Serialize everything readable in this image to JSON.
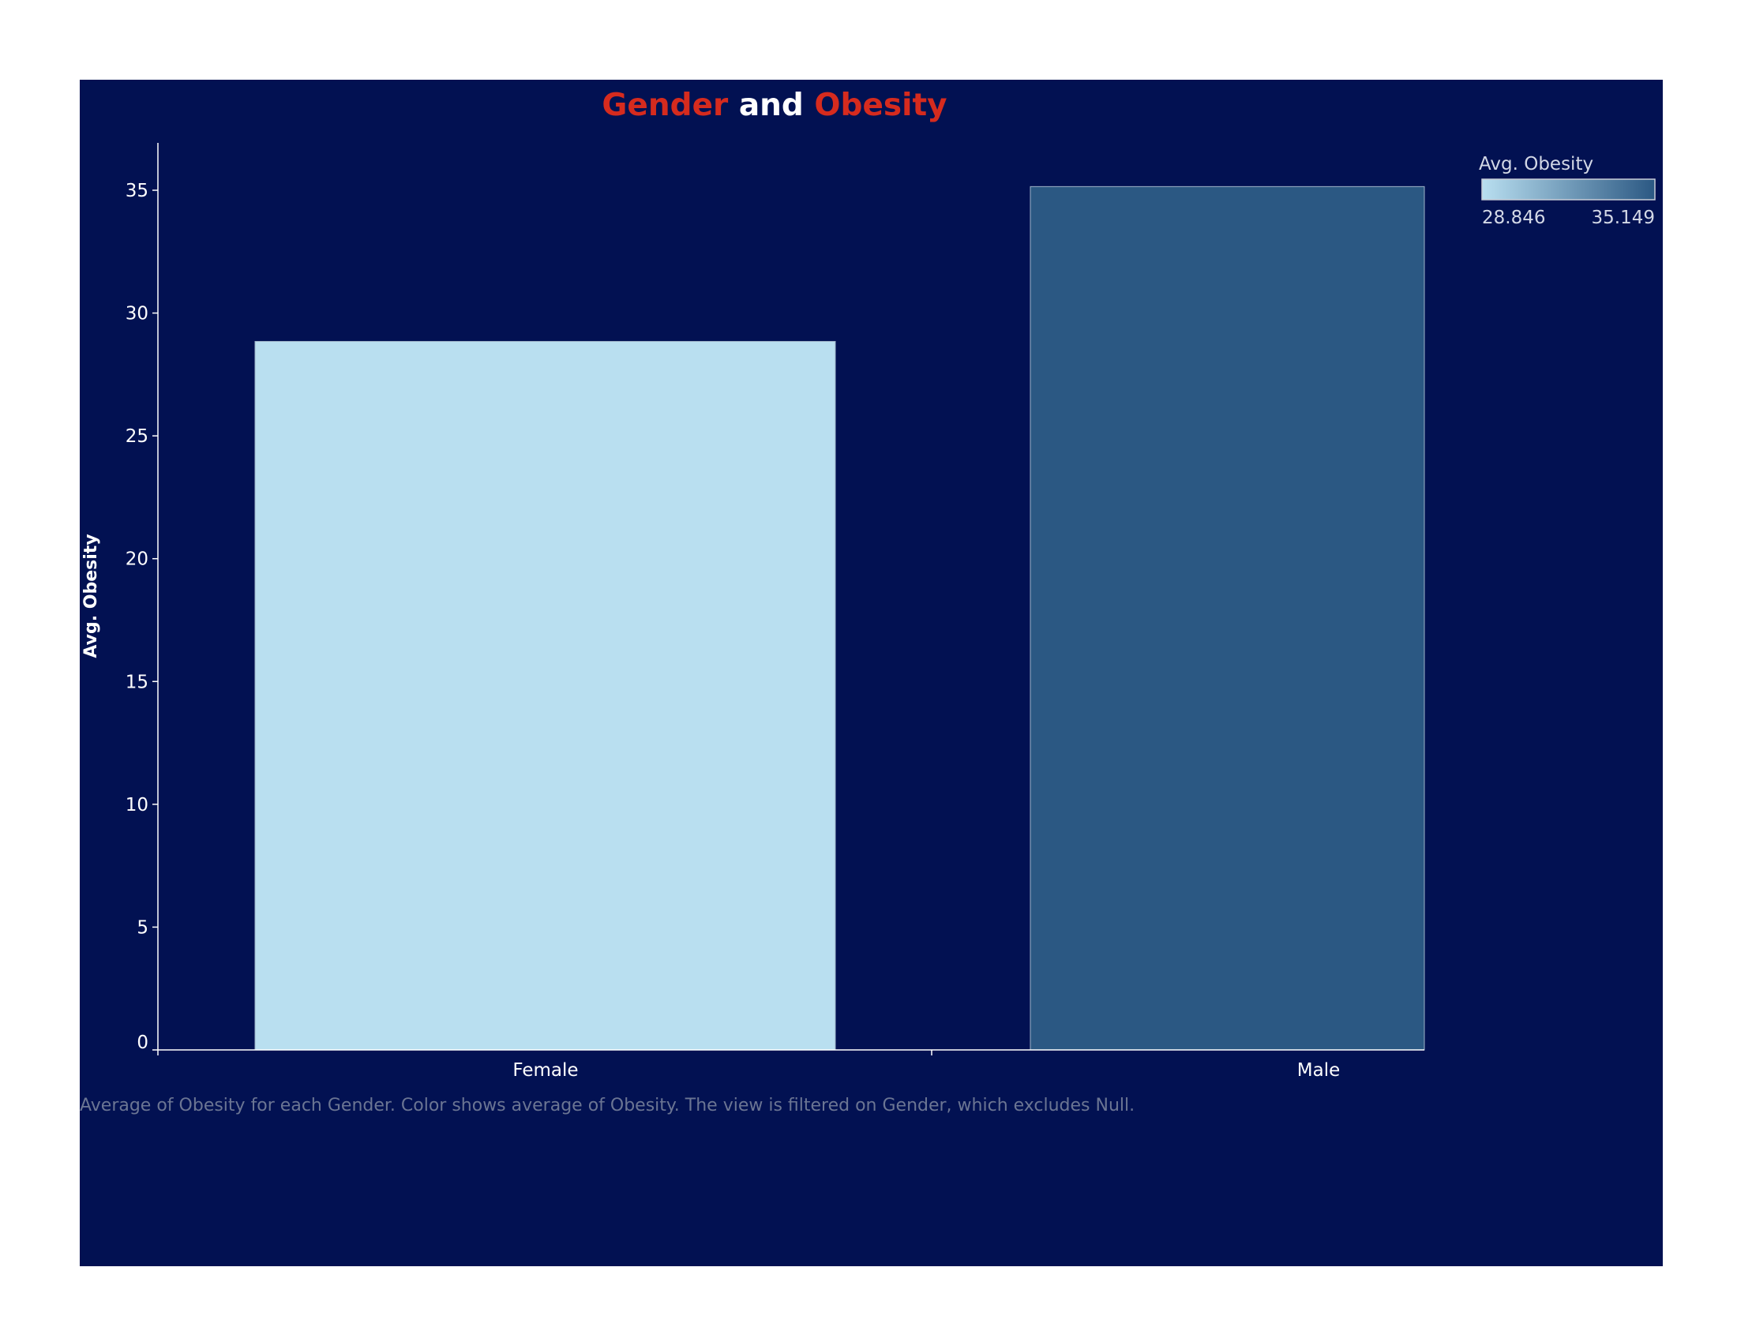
{
  "chart_data": {
    "type": "bar",
    "title_parts": [
      {
        "text": "Gender",
        "color": "#d62b1e"
      },
      {
        "text": " and ",
        "color": "#ffffff"
      },
      {
        "text": "Obesity",
        "color": "#d62b1e"
      }
    ],
    "categories": [
      "Female",
      "Male"
    ],
    "values": [
      28.846,
      35.149
    ],
    "ylabel": "Avg. Obesity",
    "xlabel": "",
    "ylim": [
      0,
      37
    ],
    "yticks": [
      0,
      5,
      10,
      15,
      20,
      25,
      30,
      35
    ],
    "grid": false,
    "legend": {
      "title": "Avg. Obesity",
      "min_label": "28.846",
      "max_label": "35.149",
      "min_color": "#b9dff0",
      "max_color": "#2b5883",
      "placement": "top-right"
    },
    "colors": {
      "background": "#021152",
      "female_bar": "#b9dff0",
      "male_bar": "#2b5883",
      "axis": "#ffffff"
    },
    "caption": "Average of Obesity for each Gender.  Color shows average of Obesity. The view is filtered on Gender, which excludes Null."
  }
}
